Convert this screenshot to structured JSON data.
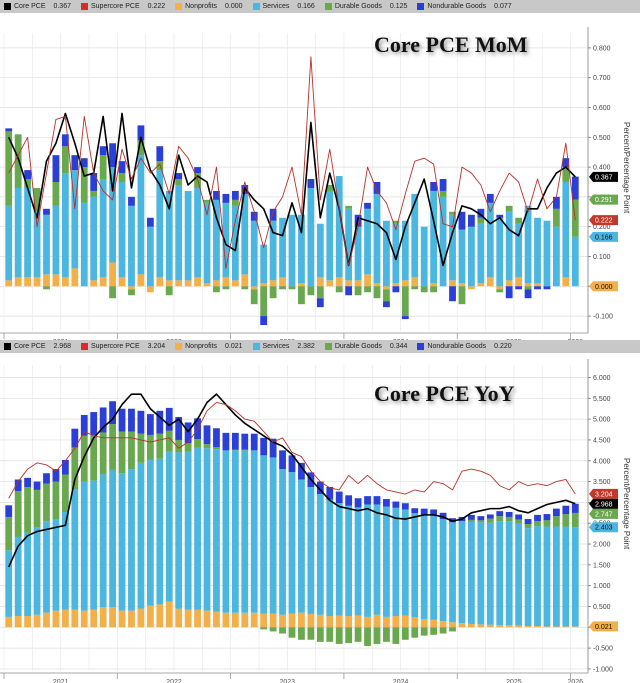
{
  "colors": {
    "core": "#000000",
    "supercore": "#c0392b",
    "nonprofits": "#f2b04b",
    "services": "#4bb6e0",
    "durable": "#6aa84f",
    "nondurable": "#2b3fd6",
    "overlap": "#6b3fb0"
  },
  "chart_data": [
    {
      "id": "mom",
      "type": "bar",
      "stacked": true,
      "title": "Core PCE MoM",
      "ylabel": "Percent/Percentage Point",
      "ylim": [
        -0.15,
        0.85
      ],
      "yticks": [
        -0.1,
        0.0,
        0.1,
        0.2,
        0.3,
        0.4,
        0.5,
        0.6,
        0.7,
        0.8
      ],
      "ytick_labels": [
        "-0.100",
        "0.000",
        "0.100",
        "0.200",
        "0.300",
        "0.400",
        "0.500",
        "0.600",
        "0.700",
        "0.800"
      ],
      "x_year_labels": [
        "2021",
        "2022",
        "2023",
        "2024",
        "2025",
        "2026"
      ],
      "x_start": "2021-01",
      "grid": true,
      "legend": {
        "position": "top",
        "entries": [
          {
            "key": "core",
            "label": "Core PCE",
            "value": "0.367"
          },
          {
            "key": "supercore",
            "label": "Supercore PCE",
            "value": "0.222"
          },
          {
            "key": "nonprofits",
            "label": "Nonprofits",
            "value": "0.000"
          },
          {
            "key": "services",
            "label": "Services",
            "value": "0.166"
          },
          {
            "key": "durable",
            "label": "Durable Goods",
            "value": "0.125"
          },
          {
            "key": "nondurable",
            "label": "Nondurable Goods",
            "value": "0.077"
          }
        ]
      },
      "last_value_tags": [
        {
          "key": "core",
          "text": "0.367",
          "value": 0.367
        },
        {
          "key": "durable",
          "text": "0.291",
          "value": 0.291
        },
        {
          "key": "supercore",
          "text": "0.222",
          "value": 0.222
        },
        {
          "key": "services",
          "text": "0.166",
          "value": 0.166
        },
        {
          "key": "nonprofits",
          "text": "0.000",
          "value": 0.0
        }
      ],
      "series": [
        {
          "name": "Nonprofits",
          "key": "nonprofits",
          "values": [
            0.02,
            0.03,
            0.03,
            0.03,
            0.04,
            0.04,
            0.03,
            0.06,
            0.0,
            0.02,
            0.03,
            0.08,
            0.03,
            -0.01,
            0.04,
            -0.02,
            0.03,
            0.02,
            0.02,
            0.02,
            0.03,
            0.01,
            0.02,
            0.03,
            0.02,
            0.04,
            -0.01,
            0.01,
            0.02,
            0.03,
            0.0,
            0.01,
            0.0,
            0.03,
            0.02,
            0.03,
            0.02,
            0.02,
            0.04,
            0.01,
            -0.01,
            0.01,
            0.02,
            0.03,
            0.0,
            0.01,
            0.0,
            0.02,
            0.01,
            -0.01,
            0.01,
            0.03,
            -0.01,
            0.02,
            0.03,
            0.01,
            0.01,
            0.0,
            0.0,
            0.03,
            0.0
          ]
        },
        {
          "name": "Services",
          "key": "services",
          "values": [
            0.25,
            0.3,
            0.3,
            0.22,
            0.2,
            0.23,
            0.35,
            0.33,
            0.28,
            0.28,
            0.33,
            0.32,
            0.32,
            0.27,
            0.4,
            0.2,
            0.36,
            0.3,
            0.32,
            0.3,
            0.3,
            0.27,
            0.27,
            0.25,
            0.25,
            0.27,
            0.22,
            0.13,
            0.2,
            0.2,
            0.24,
            0.23,
            0.33,
            0.18,
            0.3,
            0.34,
            0.24,
            0.18,
            0.22,
            0.3,
            0.22,
            0.2,
            0.2,
            0.28,
            0.2,
            0.31,
            0.3,
            0.22,
            0.18,
            0.2,
            0.2,
            0.25,
            0.23,
            0.23,
            0.18,
            0.26,
            0.22,
            0.22,
            0.2,
            0.32,
            0.166
          ]
        },
        {
          "name": "Durable Goods",
          "key": "durable",
          "values": [
            0.25,
            0.18,
            0.03,
            0.08,
            -0.01,
            0.08,
            0.09,
            0.0,
            0.12,
            0.02,
            0.08,
            -0.04,
            0.03,
            -0.02,
            0.05,
            0.0,
            0.03,
            -0.03,
            0.02,
            0.0,
            0.05,
            0.01,
            -0.02,
            -0.01,
            0.02,
            -0.01,
            -0.05,
            -0.1,
            -0.04,
            -0.01,
            -0.01,
            -0.06,
            -0.03,
            -0.04,
            0.02,
            -0.02,
            0.01,
            -0.03,
            -0.02,
            -0.04,
            -0.04,
            0.01,
            -0.1,
            -0.01,
            -0.02,
            -0.02,
            0.02,
            0.01,
            -0.06,
            0.0,
            0.02,
            0.0,
            -0.01,
            0.02,
            0.02,
            -0.01,
            0.0,
            0.0,
            0.06,
            0.05,
            0.125
          ]
        },
        {
          "name": "Nondurable Goods",
          "key": "nondurable",
          "values": [
            0.01,
            0.0,
            0.03,
            0.0,
            0.02,
            0.09,
            0.04,
            0.05,
            0.03,
            0.06,
            0.03,
            0.08,
            0.04,
            0.03,
            0.05,
            0.03,
            0.05,
            0.0,
            0.02,
            0.0,
            0.02,
            0.0,
            0.03,
            0.03,
            0.03,
            0.03,
            0.03,
            -0.03,
            0.04,
            0.0,
            0.0,
            0.0,
            0.03,
            -0.03,
            0.0,
            0.0,
            -0.03,
            0.04,
            0.02,
            0.04,
            -0.02,
            -0.02,
            -0.01,
            0.0,
            0.0,
            0.03,
            0.04,
            -0.05,
            0.06,
            0.04,
            0.03,
            0.03,
            0.01,
            -0.04,
            -0.01,
            -0.03,
            -0.01,
            -0.01,
            0.04,
            0.03,
            0.077
          ]
        },
        {
          "name": "Core PCE",
          "key": "core",
          "type": "line",
          "values": [
            0.5,
            0.43,
            0.33,
            0.23,
            0.42,
            0.48,
            0.58,
            0.48,
            0.37,
            0.38,
            0.57,
            0.32,
            0.58,
            0.33,
            0.5,
            0.39,
            0.34,
            0.26,
            0.44,
            0.34,
            0.37,
            0.35,
            0.23,
            0.14,
            0.12,
            0.33,
            0.29,
            0.26,
            0.18,
            0.17,
            0.28,
            0.18,
            0.55,
            0.23,
            0.38,
            0.26,
            0.07,
            0.23,
            0.22,
            0.21,
            0.18,
            0.09,
            0.2,
            0.28,
            0.36,
            0.22,
            0.07,
            0.18,
            0.27,
            0.26,
            0.24,
            0.21,
            0.23,
            0.19,
            0.17,
            0.26,
            0.26,
            0.33,
            0.38,
            0.4,
            0.367
          ]
        },
        {
          "name": "Supercore PCE",
          "key": "supercore",
          "type": "line",
          "values": [
            0.38,
            0.44,
            0.5,
            0.2,
            0.38,
            0.56,
            0.57,
            0.26,
            0.57,
            0.38,
            0.32,
            0.29,
            0.46,
            0.36,
            0.43,
            0.38,
            0.41,
            0.31,
            0.47,
            0.43,
            0.36,
            0.24,
            0.4,
            0.06,
            0.22,
            0.35,
            0.25,
            0.13,
            0.25,
            0.3,
            0.4,
            0.24,
            0.77,
            0.29,
            0.46,
            0.26,
            0.07,
            0.2,
            0.4,
            0.32,
            0.28,
            0.19,
            0.31,
            0.42,
            0.43,
            0.41,
            0.21,
            0.2,
            0.4,
            0.38,
            0.34,
            0.25,
            0.32,
            0.38,
            0.35,
            0.25,
            0.36,
            0.26,
            0.3,
            0.48,
            0.222
          ]
        }
      ]
    },
    {
      "id": "yoy",
      "type": "bar",
      "stacked": true,
      "title": "Core PCE YoY",
      "ylabel": "Percent/Percentage Point",
      "ylim": [
        -1.05,
        6.3
      ],
      "yticks": [
        -1.0,
        -0.5,
        0.0,
        0.5,
        1.0,
        1.5,
        2.0,
        2.5,
        3.0,
        3.5,
        4.0,
        4.5,
        5.0,
        5.5,
        6.0
      ],
      "ytick_labels": [
        "-1.000",
        "-0.500",
        "0.000",
        "0.500",
        "1.000",
        "1.500",
        "2.000",
        "2.500",
        "3.000",
        "3.500",
        "4.000",
        "4.500",
        "5.000",
        "5.500",
        "6.000"
      ],
      "x_year_labels": [
        "2021",
        "2022",
        "2023",
        "2024",
        "2025",
        "2026"
      ],
      "x_start": "2021-01",
      "grid": true,
      "legend": {
        "position": "top",
        "entries": [
          {
            "key": "core",
            "label": "Core PCE",
            "value": "2.968"
          },
          {
            "key": "supercore",
            "label": "Supercore PCE",
            "value": "3.204"
          },
          {
            "key": "nonprofits",
            "label": "Nonprofits",
            "value": "0.021"
          },
          {
            "key": "services",
            "label": "Services",
            "value": "2.382"
          },
          {
            "key": "durable",
            "label": "Durable Goods",
            "value": "0.344"
          },
          {
            "key": "nondurable",
            "label": "Nondurable Goods",
            "value": "0.220"
          }
        ]
      },
      "last_value_tags": [
        {
          "key": "supercore",
          "text": "3.204",
          "value": 3.204
        },
        {
          "key": "core",
          "text": "2.968",
          "value": 2.968
        },
        {
          "key": "durable",
          "text": "2.747",
          "value": 2.747
        },
        {
          "key": "services",
          "text": "2.403",
          "value": 2.403
        },
        {
          "key": "nonprofits",
          "text": "0.021",
          "value": 0.021
        }
      ],
      "series": [
        {
          "name": "Nonprofits",
          "key": "nonprofits",
          "values": [
            0.25,
            0.27,
            0.27,
            0.3,
            0.35,
            0.4,
            0.42,
            0.42,
            0.4,
            0.42,
            0.48,
            0.48,
            0.4,
            0.4,
            0.45,
            0.52,
            0.55,
            0.62,
            0.45,
            0.42,
            0.42,
            0.4,
            0.38,
            0.35,
            0.35,
            0.35,
            0.35,
            0.33,
            0.33,
            0.3,
            0.33,
            0.35,
            0.32,
            0.3,
            0.27,
            0.28,
            0.27,
            0.28,
            0.25,
            0.3,
            0.25,
            0.27,
            0.28,
            0.24,
            0.2,
            0.18,
            0.15,
            0.12,
            0.1,
            0.08,
            0.07,
            0.06,
            0.05,
            0.05,
            0.04,
            0.03,
            0.03,
            0.02,
            0.02,
            0.02,
            0.021
          ]
        },
        {
          "name": "Services",
          "key": "services",
          "values": [
            1.6,
            1.9,
            2.0,
            2.1,
            2.2,
            2.2,
            2.35,
            2.9,
            3.1,
            3.1,
            3.2,
            3.3,
            3.3,
            3.4,
            3.5,
            3.5,
            3.5,
            3.6,
            3.75,
            3.8,
            3.9,
            3.9,
            3.9,
            3.9,
            3.9,
            3.9,
            3.9,
            3.8,
            3.75,
            3.5,
            3.4,
            3.2,
            3.05,
            2.9,
            2.8,
            2.7,
            2.65,
            2.6,
            2.7,
            2.65,
            2.65,
            2.6,
            2.55,
            2.5,
            2.5,
            2.5,
            2.45,
            2.4,
            2.45,
            2.45,
            2.45,
            2.45,
            2.5,
            2.5,
            2.45,
            2.35,
            2.4,
            2.4,
            2.4,
            2.4,
            2.382
          ]
        },
        {
          "name": "Durable Goods",
          "key": "durable",
          "values": [
            0.8,
            1.1,
            1.1,
            0.9,
            0.9,
            0.9,
            0.9,
            1.0,
            1.1,
            1.1,
            1.0,
            1.1,
            1.0,
            0.9,
            0.7,
            0.6,
            0.6,
            0.5,
            0.3,
            0.2,
            0.2,
            0.1,
            0.05,
            0.0,
            0.02,
            0.02,
            0.0,
            -0.05,
            -0.1,
            -0.15,
            -0.25,
            -0.3,
            -0.3,
            -0.35,
            -0.35,
            -0.4,
            -0.38,
            -0.35,
            -0.45,
            -0.4,
            -0.35,
            -0.4,
            -0.3,
            -0.25,
            -0.2,
            -0.18,
            -0.15,
            -0.1,
            0.0,
            0.05,
            0.05,
            0.1,
            0.12,
            0.1,
            0.1,
            0.1,
            0.12,
            0.15,
            0.25,
            0.3,
            0.344
          ]
        },
        {
          "name": "Nondurable Goods",
          "key": "nondurable",
          "values": [
            0.28,
            0.28,
            0.22,
            0.2,
            0.25,
            0.3,
            0.35,
            0.45,
            0.5,
            0.55,
            0.6,
            0.55,
            0.55,
            0.55,
            0.55,
            0.5,
            0.55,
            0.55,
            0.55,
            0.5,
            0.5,
            0.45,
            0.45,
            0.42,
            0.4,
            0.38,
            0.4,
            0.42,
            0.45,
            0.45,
            0.4,
            0.4,
            0.35,
            0.3,
            0.3,
            0.28,
            0.25,
            0.22,
            0.2,
            0.2,
            0.18,
            0.15,
            0.15,
            0.12,
            0.15,
            0.15,
            0.15,
            0.1,
            0.1,
            0.12,
            0.1,
            0.1,
            0.12,
            0.12,
            0.12,
            0.12,
            0.15,
            0.15,
            0.18,
            0.2,
            0.22
          ]
        },
        {
          "name": "Core PCE",
          "key": "core",
          "type": "line",
          "values": [
            1.45,
            1.95,
            2.2,
            2.3,
            2.35,
            2.4,
            2.45,
            3.55,
            4.1,
            4.55,
            4.8,
            5.0,
            5.35,
            5.6,
            5.6,
            5.25,
            5.05,
            4.85,
            5.0,
            4.7,
            5.0,
            5.4,
            5.6,
            5.35,
            5.1,
            4.9,
            4.75,
            4.6,
            4.45,
            4.35,
            4.15,
            3.85,
            3.55,
            3.3,
            3.05,
            2.9,
            2.85,
            2.8,
            2.85,
            2.75,
            2.7,
            2.62,
            2.6,
            2.65,
            2.7,
            2.7,
            2.65,
            2.55,
            2.6,
            2.75,
            2.8,
            2.85,
            2.85,
            2.9,
            2.8,
            2.75,
            2.85,
            2.95,
            3.0,
            3.05,
            2.968
          ]
        },
        {
          "name": "Supercore PCE",
          "key": "supercore",
          "type": "line",
          "values": [
            3.1,
            3.5,
            3.8,
            3.95,
            3.9,
            3.75,
            4.0,
            4.3,
            4.7,
            4.6,
            4.55,
            4.55,
            4.55,
            4.55,
            4.5,
            4.45,
            4.5,
            4.55,
            4.3,
            4.45,
            4.75,
            5.2,
            5.4,
            5.35,
            5.2,
            5.0,
            4.95,
            4.7,
            4.45,
            4.55,
            4.2,
            4.1,
            3.75,
            3.5,
            3.35,
            3.3,
            3.65,
            3.45,
            3.65,
            3.45,
            3.3,
            3.25,
            3.2,
            3.3,
            3.25,
            3.5,
            3.45,
            3.3,
            3.75,
            3.8,
            3.75,
            3.65,
            3.4,
            3.3,
            3.5,
            3.4,
            3.45,
            3.4,
            3.5,
            3.55,
            3.204
          ]
        }
      ]
    }
  ]
}
